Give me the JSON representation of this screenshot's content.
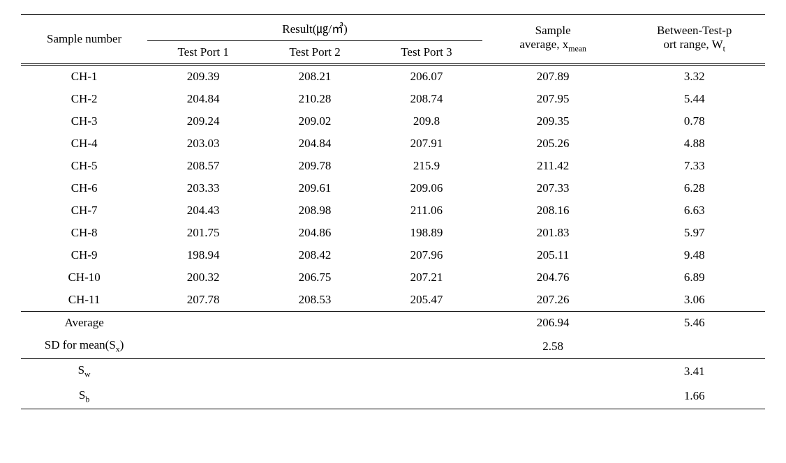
{
  "table": {
    "header": {
      "sample_number": "Sample number",
      "result_group": "Result(㎍/㎥)",
      "test_port_1": "Test Port 1",
      "test_port_2": "Test Port 2",
      "test_port_3": "Test Port 3",
      "sample_average_line1": "Sample",
      "sample_average_line2_pre": "average, x",
      "sample_average_line2_sub": "mean",
      "between_line1": "Between-Test-p",
      "between_line2_pre": "ort range, W",
      "between_line2_sub": "t"
    },
    "rows": [
      {
        "sample": "CH-1",
        "p1": "209.39",
        "p2": "208.21",
        "p3": "206.07",
        "avg": "207.89",
        "range": "3.32"
      },
      {
        "sample": "CH-2",
        "p1": "204.84",
        "p2": "210.28",
        "p3": "208.74",
        "avg": "207.95",
        "range": "5.44"
      },
      {
        "sample": "CH-3",
        "p1": "209.24",
        "p2": "209.02",
        "p3": "209.8",
        "avg": "209.35",
        "range": "0.78"
      },
      {
        "sample": "CH-4",
        "p1": "203.03",
        "p2": "204.84",
        "p3": "207.91",
        "avg": "205.26",
        "range": "4.88"
      },
      {
        "sample": "CH-5",
        "p1": "208.57",
        "p2": "209.78",
        "p3": "215.9",
        "avg": "211.42",
        "range": "7.33"
      },
      {
        "sample": "CH-6",
        "p1": "203.33",
        "p2": "209.61",
        "p3": "209.06",
        "avg": "207.33",
        "range": "6.28"
      },
      {
        "sample": "CH-7",
        "p1": "204.43",
        "p2": "208.98",
        "p3": "211.06",
        "avg": "208.16",
        "range": "6.63"
      },
      {
        "sample": "CH-8",
        "p1": "201.75",
        "p2": "204.86",
        "p3": "198.89",
        "avg": "201.83",
        "range": "5.97"
      },
      {
        "sample": "CH-9",
        "p1": "198.94",
        "p2": "208.42",
        "p3": "207.96",
        "avg": "205.11",
        "range": "9.48"
      },
      {
        "sample": "CH-10",
        "p1": "200.32",
        "p2": "206.75",
        "p3": "207.21",
        "avg": "204.76",
        "range": "6.89"
      },
      {
        "sample": "CH-11",
        "p1": "207.78",
        "p2": "208.53",
        "p3": "205.47",
        "avg": "207.26",
        "range": "3.06"
      }
    ],
    "summary": {
      "average_label": "Average",
      "average_avg": "206.94",
      "average_range": "5.46",
      "sd_label_pre": "SD for mean(S",
      "sd_label_sub": "x",
      "sd_label_post": ")",
      "sd_value": "2.58",
      "sw_label_pre": "S",
      "sw_label_sub": "w",
      "sw_value": "3.41",
      "sb_label_pre": "S",
      "sb_label_sub": "b",
      "sb_value": "1.66"
    }
  },
  "style": {
    "font_size_pt": 17,
    "text_color": "#000000",
    "background_color": "#ffffff",
    "border_color": "#000000",
    "sub_font_scale": 0.7
  }
}
